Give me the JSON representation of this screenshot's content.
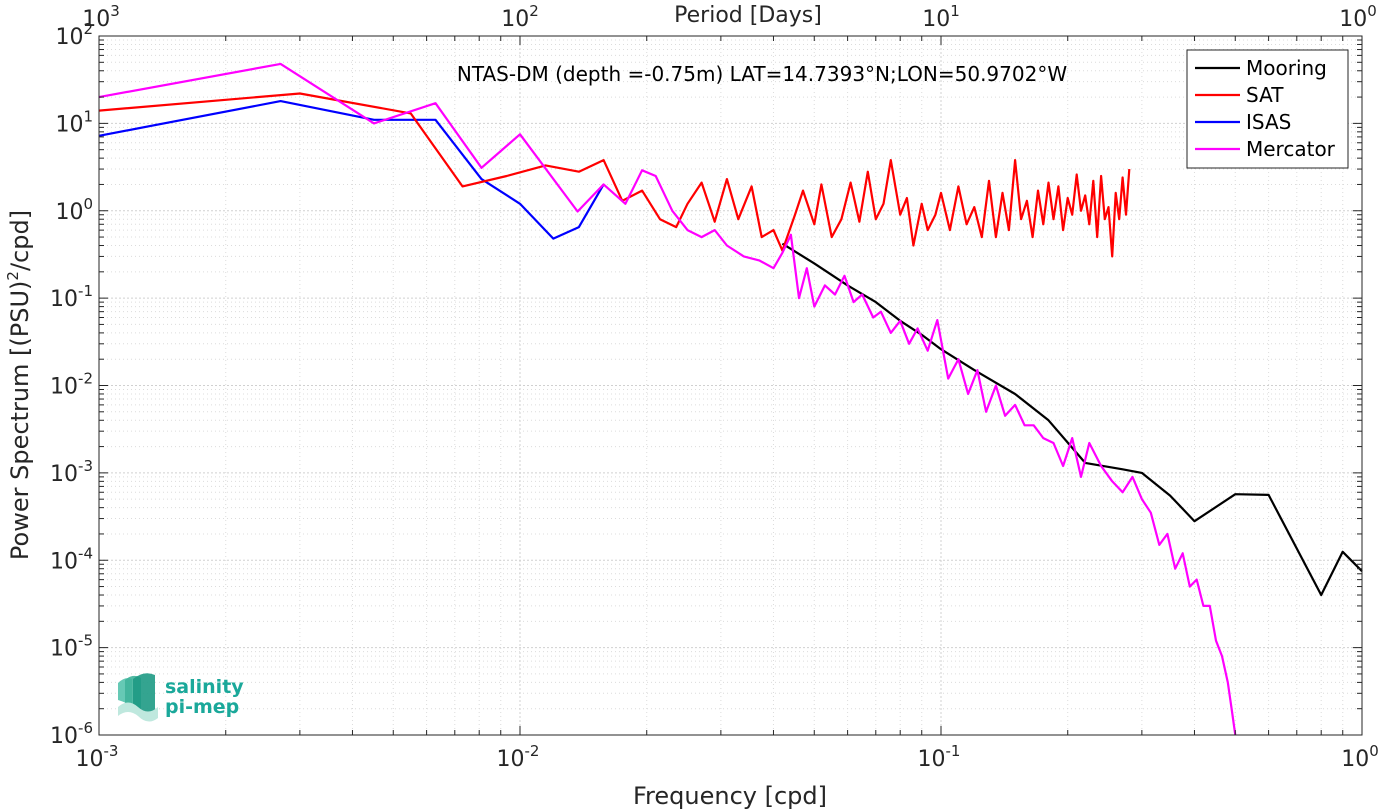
{
  "chart_data": {
    "type": "line",
    "title": "NTAS-DM (depth =-0.75m) LAT=14.7393°N;LON=50.9702°W",
    "xlabel": "Frequency [cpd]",
    "ylabel_prefix": "Power Spectrum [(PSU)",
    "ylabel_sup": "2",
    "ylabel_suffix": "/cpd]",
    "top_xlabel": "Period [Days]",
    "x_scale": "log",
    "y_scale": "log",
    "xlim": [
      0.001,
      1
    ],
    "ylim": [
      1e-06,
      100
    ],
    "grid": true,
    "legend_position": "top-right",
    "x_ticks": [
      {
        "base": "10",
        "exp": "-3"
      },
      {
        "base": "10",
        "exp": "-2"
      },
      {
        "base": "10",
        "exp": "-1"
      },
      {
        "base": "10",
        "exp": "0"
      }
    ],
    "y_ticks": [
      {
        "base": "10",
        "exp": "-6"
      },
      {
        "base": "10",
        "exp": "-5"
      },
      {
        "base": "10",
        "exp": "-4"
      },
      {
        "base": "10",
        "exp": "-3"
      },
      {
        "base": "10",
        "exp": "-2"
      },
      {
        "base": "10",
        "exp": "-1"
      },
      {
        "base": "10",
        "exp": "0"
      },
      {
        "base": "10",
        "exp": "1"
      },
      {
        "base": "10",
        "exp": "2"
      }
    ],
    "top_ticks": [
      {
        "base": "10",
        "exp": "3"
      },
      {
        "base": "10",
        "exp": "2"
      },
      {
        "base": "10",
        "exp": "1"
      },
      {
        "base": "10",
        "exp": "0"
      }
    ],
    "series": [
      {
        "name": "Mooring",
        "color": "#000000",
        "x": [
          0.042,
          0.05,
          0.06,
          0.07,
          0.08,
          0.09,
          0.1,
          0.12,
          0.15,
          0.18,
          0.22,
          0.27,
          0.3,
          0.35,
          0.4,
          0.5,
          0.6,
          0.8,
          0.9,
          1.0
        ],
        "y": [
          0.42,
          0.25,
          0.14,
          0.09,
          0.055,
          0.038,
          0.026,
          0.015,
          0.008,
          0.004,
          0.0013,
          0.0011,
          0.001,
          0.00055,
          0.00028,
          0.00057,
          0.00056,
          4e-05,
          0.000125,
          7.5e-05
        ]
      },
      {
        "name": "SAT",
        "color": "#ff0000",
        "x": [
          0.001,
          0.003,
          0.0055,
          0.0073,
          0.0093,
          0.0115,
          0.0138,
          0.0158,
          0.0175,
          0.0195,
          0.0215,
          0.0235,
          0.025,
          0.027,
          0.029,
          0.031,
          0.033,
          0.0355,
          0.0375,
          0.04,
          0.042,
          0.045,
          0.047,
          0.05,
          0.052,
          0.055,
          0.058,
          0.061,
          0.064,
          0.067,
          0.07,
          0.073,
          0.076,
          0.08,
          0.083,
          0.086,
          0.09,
          0.093,
          0.097,
          0.1,
          0.105,
          0.11,
          0.115,
          0.12,
          0.125,
          0.13,
          0.135,
          0.14,
          0.145,
          0.15,
          0.155,
          0.16,
          0.165,
          0.17,
          0.175,
          0.18,
          0.185,
          0.19,
          0.195,
          0.2,
          0.205,
          0.21,
          0.215,
          0.22,
          0.225,
          0.23,
          0.235,
          0.24,
          0.245,
          0.25,
          0.255,
          0.26,
          0.265,
          0.27,
          0.275,
          0.28
        ],
        "y": [
          14,
          22,
          13,
          1.9,
          2.5,
          3.3,
          2.8,
          3.8,
          1.3,
          1.7,
          0.8,
          0.65,
          1.2,
          2.1,
          0.75,
          2.3,
          0.8,
          1.9,
          0.5,
          0.6,
          0.35,
          0.9,
          1.7,
          0.7,
          2.0,
          0.5,
          0.8,
          2.1,
          0.75,
          2.8,
          0.8,
          1.2,
          3.8,
          0.9,
          1.4,
          0.4,
          1.2,
          0.6,
          0.9,
          1.6,
          0.6,
          1.9,
          0.7,
          1.1,
          0.5,
          2.2,
          0.5,
          1.6,
          0.6,
          3.8,
          0.8,
          1.3,
          0.5,
          1.7,
          0.7,
          2.1,
          0.8,
          1.9,
          0.6,
          1.4,
          0.9,
          2.6,
          1.0,
          1.5,
          0.7,
          2.2,
          0.5,
          2.5,
          0.8,
          1.1,
          0.3,
          1.6,
          0.8,
          2.4,
          0.9,
          3.0
        ]
      },
      {
        "name": "ISAS",
        "color": "#0000ff",
        "x": [
          0.001,
          0.0027,
          0.0045,
          0.0063,
          0.0081,
          0.01,
          0.012,
          0.0138,
          0.0158
        ],
        "y": [
          7.2,
          18,
          11,
          11,
          2.3,
          1.2,
          0.48,
          0.65,
          2.0
        ]
      },
      {
        "name": "Mercator",
        "color": "#ff00ff",
        "x": [
          0.001,
          0.0027,
          0.0045,
          0.0063,
          0.0081,
          0.01,
          0.0137,
          0.0158,
          0.0178,
          0.0195,
          0.021,
          0.023,
          0.025,
          0.027,
          0.029,
          0.031,
          0.034,
          0.037,
          0.04,
          0.042,
          0.044,
          0.046,
          0.048,
          0.05,
          0.053,
          0.056,
          0.059,
          0.062,
          0.065,
          0.069,
          0.072,
          0.076,
          0.08,
          0.084,
          0.088,
          0.093,
          0.098,
          0.104,
          0.11,
          0.116,
          0.122,
          0.128,
          0.135,
          0.142,
          0.15,
          0.158,
          0.166,
          0.175,
          0.185,
          0.195,
          0.205,
          0.215,
          0.225,
          0.24,
          0.255,
          0.27,
          0.285,
          0.3,
          0.315,
          0.33,
          0.345,
          0.36,
          0.375,
          0.39,
          0.405,
          0.42,
          0.435,
          0.45,
          0.465,
          0.48,
          0.49,
          0.5
        ],
        "y": [
          20,
          48,
          10,
          17,
          3.1,
          7.5,
          0.98,
          2.0,
          1.2,
          2.9,
          2.5,
          1.0,
          0.6,
          0.5,
          0.6,
          0.4,
          0.3,
          0.27,
          0.22,
          0.33,
          0.53,
          0.1,
          0.22,
          0.08,
          0.14,
          0.11,
          0.18,
          0.09,
          0.11,
          0.06,
          0.07,
          0.04,
          0.055,
          0.03,
          0.045,
          0.025,
          0.056,
          0.012,
          0.02,
          0.008,
          0.015,
          0.005,
          0.01,
          0.0045,
          0.006,
          0.0035,
          0.0035,
          0.0025,
          0.0022,
          0.0012,
          0.0025,
          0.0009,
          0.0022,
          0.0012,
          0.0008,
          0.0006,
          0.0009,
          0.0005,
          0.00035,
          0.00015,
          0.0002,
          8e-05,
          0.00012,
          5e-05,
          6e-05,
          3e-05,
          3e-05,
          1.2e-05,
          8e-06,
          4e-06,
          2e-06,
          1e-06
        ]
      }
    ]
  },
  "logo": {
    "line1": "salinity",
    "line2": "pi-mep"
  }
}
